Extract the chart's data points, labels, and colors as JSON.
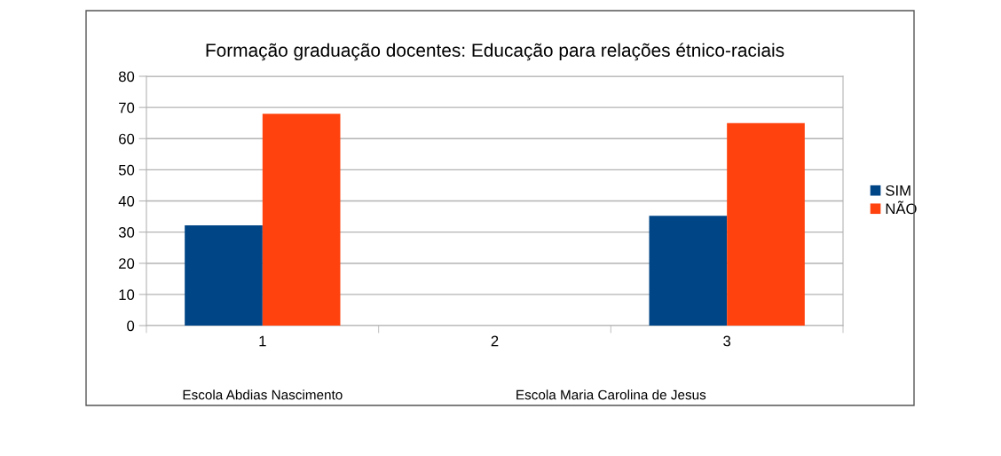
{
  "chart_data": {
    "type": "bar",
    "title": "Formação graduação docentes: Educação para relações étnico-raciais",
    "categories": [
      "1",
      "2",
      "3"
    ],
    "series": [
      {
        "name": "SIM",
        "color": "#004586",
        "values": [
          32.2,
          null,
          35.2
        ]
      },
      {
        "name": "NÃO",
        "color": "#ff420e",
        "values": [
          68.0,
          null,
          65.0
        ]
      }
    ],
    "ylim": [
      0,
      80
    ],
    "yticks": [
      0,
      10,
      20,
      30,
      40,
      50,
      60,
      70,
      80
    ],
    "grid": "y",
    "legend": "right",
    "annotations": [
      "Escola Abdias Nascimento",
      "Escola Maria Carolina de Jesus"
    ]
  }
}
